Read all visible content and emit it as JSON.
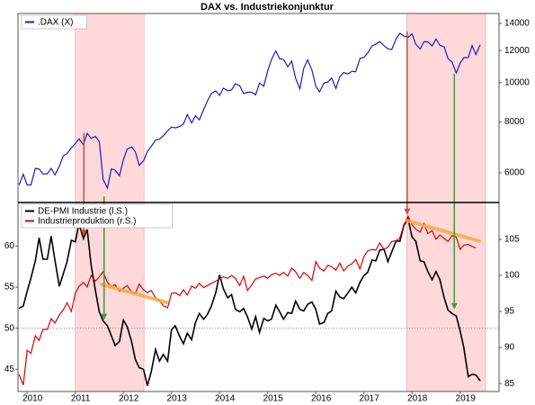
{
  "chart_data": [
    {
      "type": "line",
      "title": "DAX vs. Industriekonjunktur",
      "x": [
        2009.83,
        2009.92,
        2010,
        2010.08,
        2010.17,
        2010.25,
        2010.33,
        2010.42,
        2010.5,
        2010.58,
        2010.67,
        2010.75,
        2010.83,
        2010.92,
        2011,
        2011.08,
        2011.17,
        2011.25,
        2011.33,
        2011.42,
        2011.5,
        2011.58,
        2011.67,
        2011.75,
        2011.83,
        2011.92,
        2012,
        2012.08,
        2012.17,
        2012.25,
        2012.33,
        2012.42,
        2012.5,
        2012.58,
        2012.67,
        2012.75,
        2012.83,
        2012.92,
        2013,
        2013.08,
        2013.17,
        2013.25,
        2013.33,
        2013.42,
        2013.5,
        2013.58,
        2013.67,
        2013.75,
        2013.83,
        2013.92,
        2014,
        2014.08,
        2014.17,
        2014.25,
        2014.33,
        2014.42,
        2014.5,
        2014.58,
        2014.67,
        2014.75,
        2014.83,
        2014.92,
        2015,
        2015.08,
        2015.17,
        2015.25,
        2015.33,
        2015.42,
        2015.5,
        2015.58,
        2015.67,
        2015.75,
        2015.83,
        2015.92,
        2016,
        2016.08,
        2016.17,
        2016.25,
        2016.33,
        2016.42,
        2016.5,
        2016.58,
        2016.67,
        2016.75,
        2016.83,
        2016.92,
        2017,
        2017.08,
        2017.17,
        2017.25,
        2017.33,
        2017.42,
        2017.5,
        2017.58,
        2017.67,
        2017.75,
        2017.83,
        2017.92,
        2018,
        2018.08,
        2018.17,
        2018.25,
        2018.33,
        2018.42,
        2018.5,
        2018.58,
        2018.67,
        2018.75,
        2018.83,
        2018.92,
        2019,
        2019.08,
        2019.17,
        2019.25,
        2019.33,
        2019.42
      ],
      "xlim": [
        2009.81,
        2019.81
      ],
      "ylim": [
        5070,
        14800
      ],
      "log_scale": true,
      "yticks": [
        6000,
        8000,
        10000,
        12000,
        14000
      ],
      "series": [
        {
          "name": ".DAX (X)",
          "color": "#1c1cc8",
          "values": [
            5600,
            5950,
            5600,
            5600,
            6150,
            6130,
            5960,
            5970,
            6150,
            5930,
            6230,
            6600,
            6690,
            6910,
            7080,
            7270,
            7040,
            7510,
            7290,
            7380,
            7160,
            5780,
            5500,
            6140,
            6090,
            5900,
            6460,
            6860,
            6950,
            6760,
            6260,
            6420,
            6770,
            6970,
            7220,
            7260,
            7400,
            7610,
            7780,
            7740,
            7800,
            7910,
            8350,
            7960,
            8280,
            8100,
            8590,
            9030,
            9400,
            9550,
            9300,
            9690,
            9560,
            9600,
            9940,
            9830,
            9400,
            9470,
            9470,
            9330,
            9980,
            9800,
            10690,
            11400,
            11970,
            11450,
            11410,
            10940,
            11300,
            10260,
            9660,
            10850,
            11380,
            10740,
            9800,
            9490,
            9970,
            10040,
            10260,
            9680,
            10340,
            10590,
            10510,
            10660,
            10640,
            11480,
            11540,
            11830,
            12310,
            12440,
            12620,
            12330,
            12120,
            12060,
            12830,
            13230,
            13020,
            12920,
            13190,
            12440,
            12100,
            12610,
            12600,
            12310,
            12810,
            12360,
            12250,
            11450,
            11260,
            10560,
            11170,
            11520,
            11530,
            12340,
            11730,
            12400
          ]
        }
      ],
      "shaded_ranges": [
        [
          2011.0,
          2012.43
        ],
        [
          2017.89,
          2019.53
        ]
      ],
      "shade_color": "#ffd9d9"
    },
    {
      "type": "line",
      "x": [
        2009.83,
        2009.92,
        2010,
        2010.08,
        2010.17,
        2010.25,
        2010.33,
        2010.42,
        2010.5,
        2010.58,
        2010.67,
        2010.75,
        2010.83,
        2010.92,
        2011,
        2011.08,
        2011.17,
        2011.25,
        2011.33,
        2011.42,
        2011.5,
        2011.58,
        2011.67,
        2011.75,
        2011.83,
        2011.92,
        2012,
        2012.08,
        2012.17,
        2012.25,
        2012.33,
        2012.42,
        2012.5,
        2012.58,
        2012.67,
        2012.75,
        2012.83,
        2012.92,
        2013,
        2013.08,
        2013.17,
        2013.25,
        2013.33,
        2013.42,
        2013.5,
        2013.58,
        2013.67,
        2013.75,
        2013.83,
        2013.92,
        2014,
        2014.08,
        2014.17,
        2014.25,
        2014.33,
        2014.42,
        2014.5,
        2014.58,
        2014.67,
        2014.75,
        2014.83,
        2014.92,
        2015,
        2015.08,
        2015.17,
        2015.25,
        2015.33,
        2015.42,
        2015.5,
        2015.58,
        2015.67,
        2015.75,
        2015.83,
        2015.92,
        2016,
        2016.08,
        2016.17,
        2016.25,
        2016.33,
        2016.42,
        2016.5,
        2016.58,
        2016.67,
        2016.75,
        2016.83,
        2016.92,
        2017,
        2017.08,
        2017.17,
        2017.25,
        2017.33,
        2017.42,
        2017.5,
        2017.58,
        2017.67,
        2017.75,
        2017.83,
        2017.92,
        2018,
        2018.08,
        2018.17,
        2018.25,
        2018.33,
        2018.42,
        2018.5,
        2018.58,
        2018.67,
        2018.75,
        2018.83,
        2018.92,
        2019,
        2019.08,
        2019.17,
        2019.25,
        2019.33,
        2019.42
      ],
      "xlim": [
        2009.81,
        2019.81
      ],
      "xticks": [
        2010,
        2011,
        2012,
        2013,
        2014,
        2015,
        2016,
        2017,
        2018,
        2019
      ],
      "ylim": [
        42.3,
        65.3
      ],
      "yticks": [
        45,
        50,
        55,
        60
      ],
      "y2lim": [
        83.9,
        110.1
      ],
      "y2ticks": [
        85,
        90,
        95,
        100,
        105
      ],
      "reference_line": 50,
      "series": [
        {
          "name": "DE-PMI Industrie (l.S.)",
          "color": "#000000",
          "values": [
            52.4,
            52.7,
            54.5,
            56.1,
            58.2,
            61.0,
            58.4,
            58.4,
            61.2,
            58.2,
            55.1,
            56.6,
            58.1,
            60.7,
            60.5,
            62.7,
            60.9,
            62.0,
            57.7,
            54.6,
            52.0,
            50.9,
            50.3,
            49.1,
            47.9,
            48.4,
            51.0,
            50.2,
            48.4,
            46.2,
            45.2,
            45.0,
            43.0,
            44.7,
            47.4,
            46.0,
            46.8,
            46.0,
            49.8,
            50.3,
            49.0,
            48.1,
            49.4,
            48.6,
            50.7,
            51.8,
            51.1,
            51.7,
            52.7,
            54.3,
            56.5,
            54.8,
            53.7,
            54.1,
            52.3,
            52.0,
            52.4,
            51.4,
            49.9,
            51.4,
            49.5,
            51.2,
            50.9,
            51.1,
            52.8,
            52.0,
            51.1,
            51.9,
            51.8,
            53.3,
            52.3,
            52.1,
            52.9,
            53.2,
            52.3,
            50.5,
            50.7,
            51.8,
            52.1,
            54.5,
            53.8,
            53.6,
            54.3,
            55.0,
            54.3,
            55.6,
            56.4,
            56.8,
            58.3,
            58.2,
            59.5,
            59.6,
            58.1,
            59.3,
            60.6,
            60.6,
            62.5,
            63.3,
            61.1,
            60.6,
            58.2,
            58.1,
            56.9,
            55.9,
            56.9,
            55.9,
            53.7,
            52.2,
            51.8,
            51.5,
            49.7,
            47.6,
            44.1,
            44.4,
            44.3,
            43.6
          ]
        },
        {
          "name": "Industrieproduktion (r.S.)",
          "color": "#dd0000",
          "axis": "y2",
          "values": [
            86.3,
            84.8,
            89.6,
            89.2,
            91.6,
            91.0,
            92.5,
            92.5,
            94.0,
            93.4,
            94.5,
            95.2,
            96.2,
            95.0,
            97.5,
            98.5,
            99.0,
            98.4,
            100.0,
            99.2,
            99.8,
            100.5,
            99.0,
            98.5,
            98.7,
            97.8,
            98.2,
            98.6,
            97.7,
            97.5,
            98.8,
            98.0,
            97.6,
            97.9,
            96.9,
            96.5,
            95.8,
            95.5,
            97.5,
            97.6,
            97.2,
            98.0,
            97.3,
            98.5,
            98.2,
            98.9,
            98.3,
            98.6,
            98.9,
            99.2,
            99.5,
            99.8,
            99.6,
            100.0,
            99.6,
            98.6,
            99.9,
            97.9,
            98.7,
            99.5,
            99.7,
            99.9,
            99.6,
            100.1,
            100.3,
            100.0,
            100.4,
            99.9,
            101.0,
            100.5,
            99.6,
            100.4,
            100.0,
            99.3,
            101.9,
            101.0,
            100.6,
            101.4,
            101.2,
            100.7,
            101.7,
            100.6,
            101.3,
            101.6,
            102.2,
            100.9,
            102.6,
            103.4,
            103.6,
            103.5,
            104.5,
            103.6,
            103.9,
            104.7,
            104.8,
            105.2,
            107.0,
            108.2,
            107.0,
            106.4,
            106.0,
            107.2,
            105.8,
            106.2,
            105.0,
            105.6,
            105.1,
            104.7,
            105.5,
            105.3,
            103.6,
            104.2,
            104.3,
            104.0,
            103.8,
            null
          ]
        }
      ],
      "trend_lines": [
        {
          "color": "#f7a94a",
          "axis": "y2",
          "x": [
            2011.55,
            2012.9
          ],
          "y": [
            98.75,
            96.25
          ]
        },
        {
          "color": "#f7a94a",
          "axis": "y2",
          "x": [
            2017.89,
            2019.4
          ],
          "y": [
            107.6,
            104.75
          ]
        }
      ],
      "arrows": [
        {
          "color": "#c0504d",
          "x": 2011.18,
          "from": 7520,
          "to": 61.2
        },
        {
          "color": "#c0504d",
          "x": 2017.9,
          "from": 13370,
          "to": 63.8
        },
        {
          "color": "#3c9c3c",
          "x": 2011.6,
          "from": 5250,
          "to": 51.0
        },
        {
          "color": "#3c9c3c",
          "x": 2018.88,
          "from": 10520,
          "to": 52.3
        }
      ]
    }
  ]
}
